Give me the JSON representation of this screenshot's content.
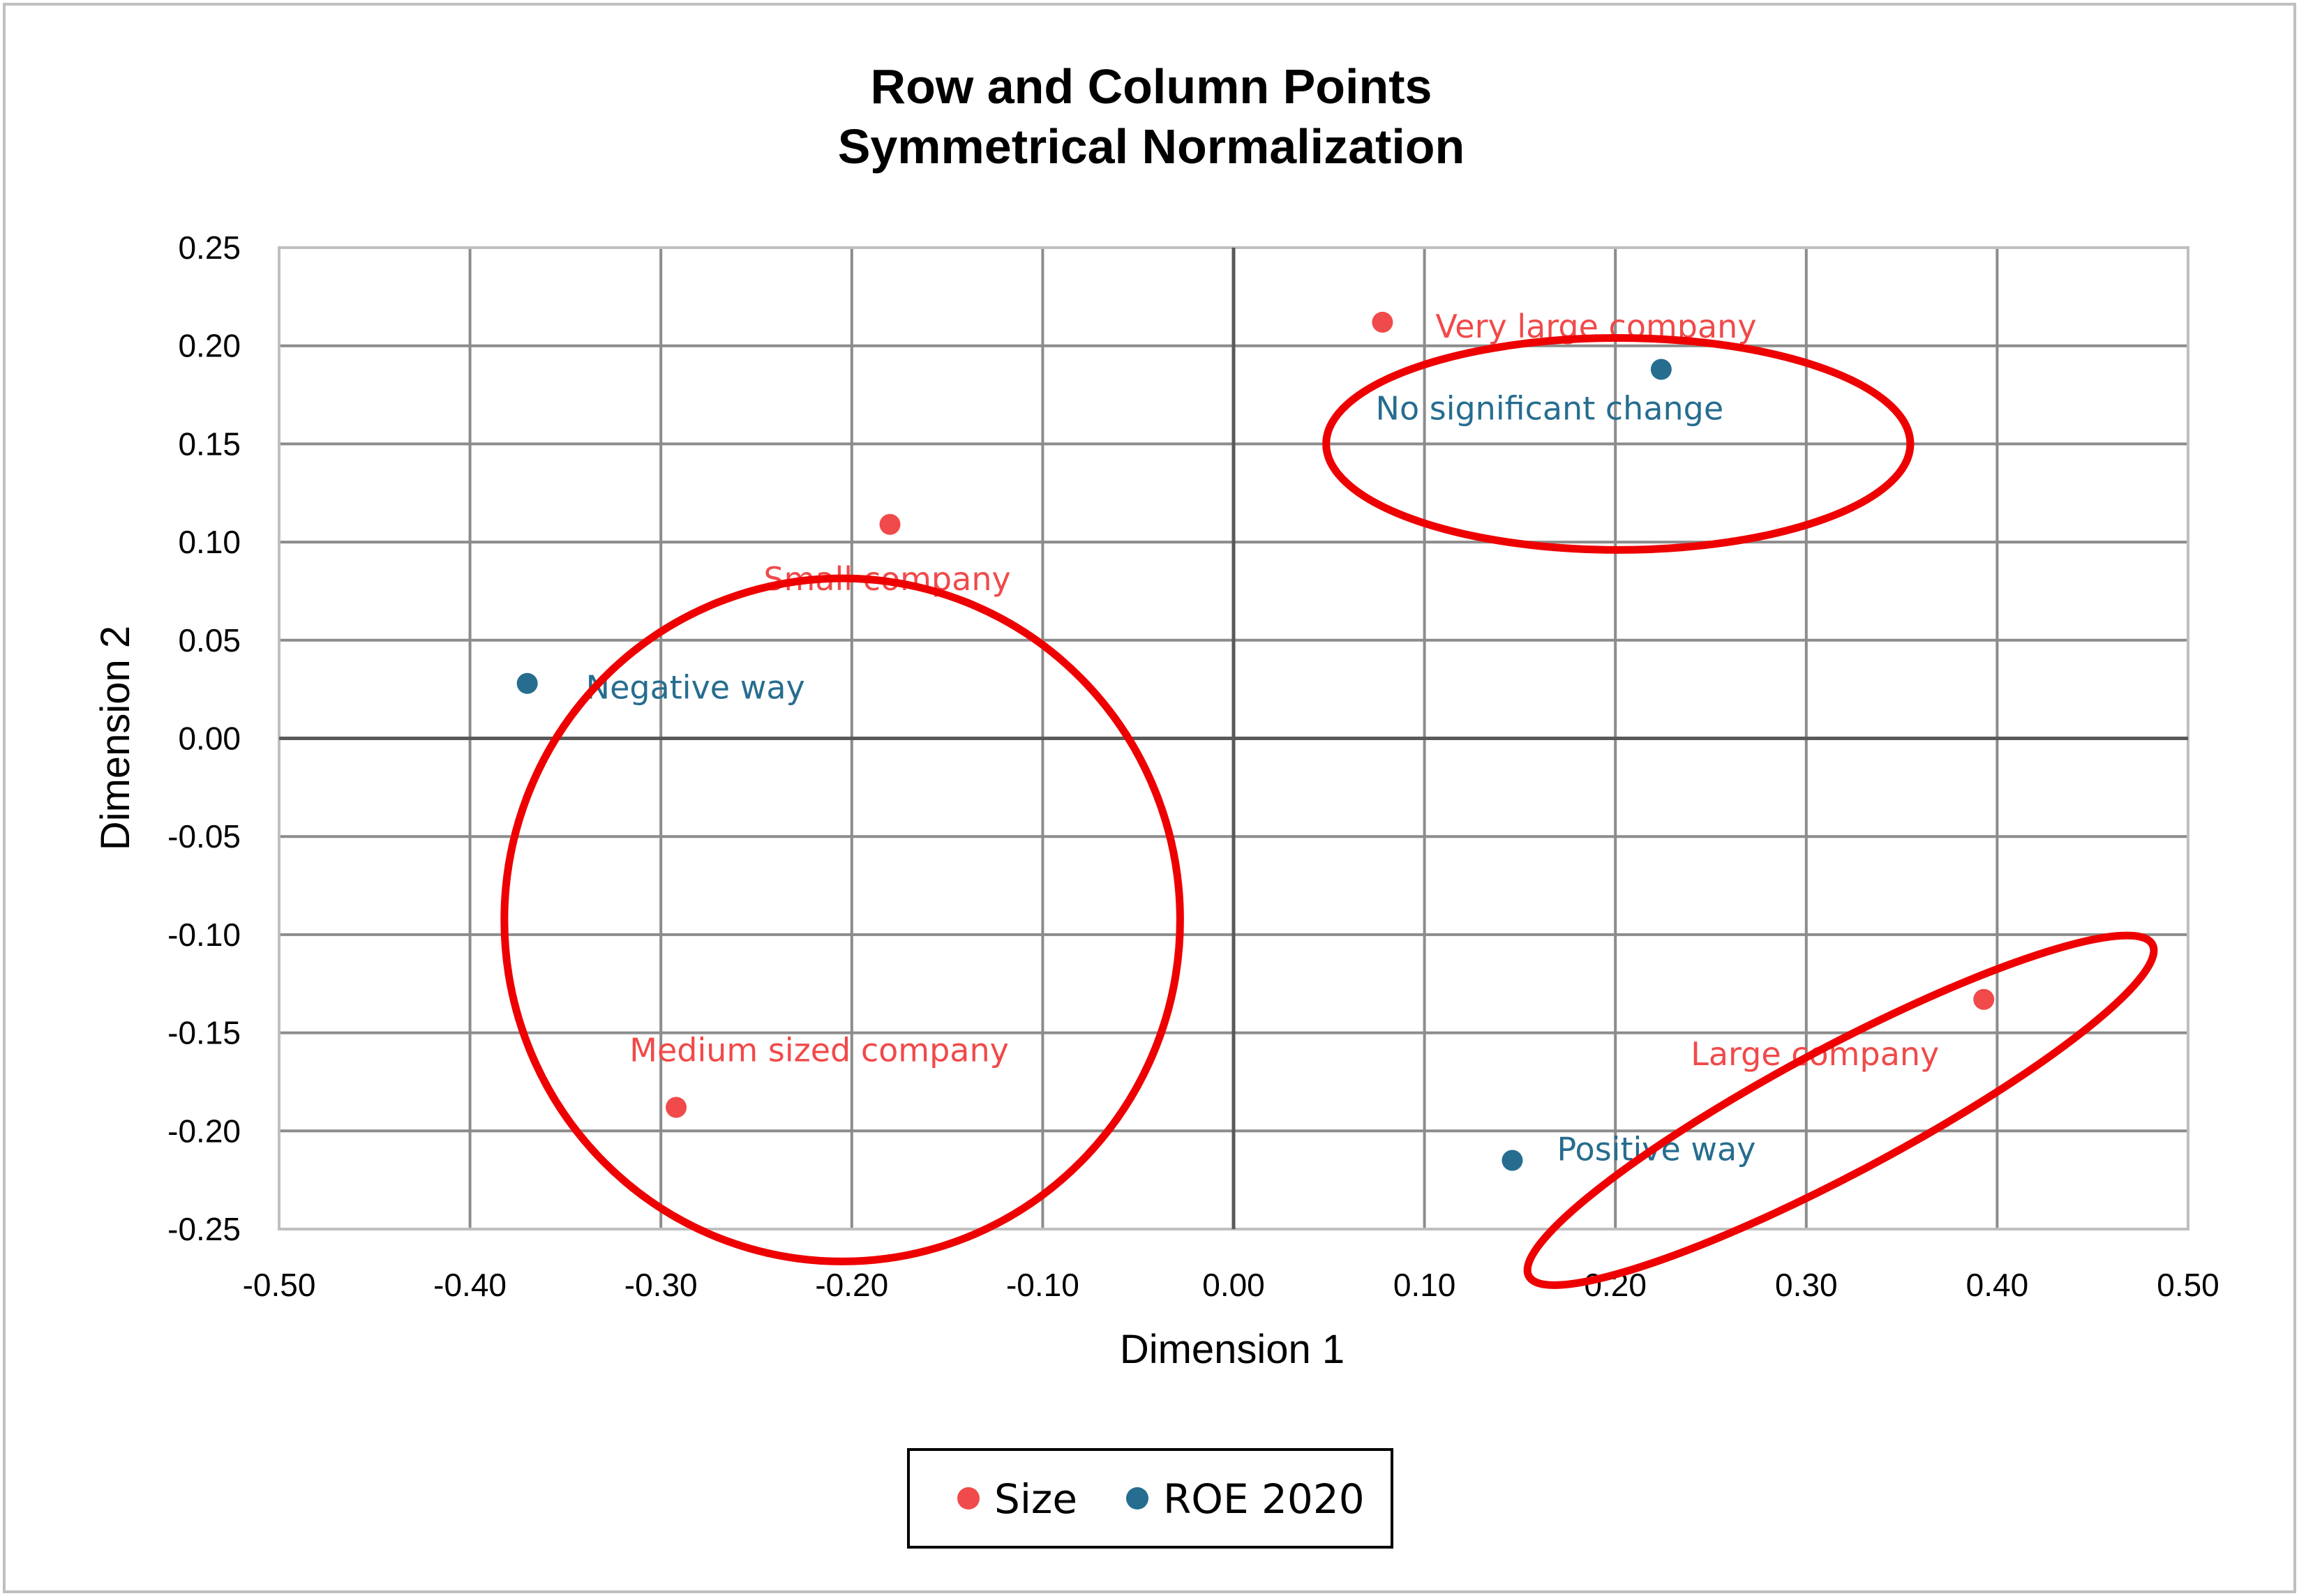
{
  "chart_data": {
    "type": "scatter",
    "title": [
      "Row and Column Points",
      "Symmetrical Normalization"
    ],
    "xlabel": "Dimension 1",
    "ylabel": "Dimension 2",
    "xlim": [
      -0.5,
      0.5
    ],
    "ylim": [
      -0.25,
      0.25
    ],
    "xticks": [
      -0.5,
      -0.4,
      -0.3,
      -0.2,
      -0.1,
      0.0,
      0.1,
      0.2,
      0.3,
      0.4,
      0.5
    ],
    "yticks": [
      0.25,
      0.2,
      0.15,
      0.1,
      0.05,
      0.0,
      -0.05,
      -0.1,
      -0.15,
      -0.2,
      -0.25
    ],
    "xtick_labels": [
      "-0.50",
      "-0.40",
      "-0.30",
      "-0.20",
      "-0.10",
      "0.00",
      "0.10",
      "0.20",
      "0.30",
      "0.40",
      "0.50"
    ],
    "ytick_labels": [
      "0.25",
      "0.20",
      "0.15",
      "0.10",
      "0.05",
      "0.00",
      "-0.05",
      "-0.10",
      "-0.15",
      "-0.20",
      "-0.25"
    ],
    "grid": true,
    "legend_position": "bottom",
    "series": [
      {
        "name": "Size",
        "color": "#f04a4a",
        "points": [
          {
            "label": "Very large company",
            "x": 0.078,
            "y": 0.212
          },
          {
            "label": "Small company",
            "x": -0.18,
            "y": 0.109
          },
          {
            "label": "Medium sized company",
            "x": -0.292,
            "y": -0.188
          },
          {
            "label": "Large company",
            "x": 0.393,
            "y": -0.133
          }
        ]
      },
      {
        "name": "ROE 2020",
        "color": "#266d8f",
        "points": [
          {
            "label": "No significant change",
            "x": 0.224,
            "y": 0.188
          },
          {
            "label": "Negative way",
            "x": -0.37,
            "y": 0.028
          },
          {
            "label": "Positive way",
            "x": 0.146,
            "y": -0.215
          }
        ]
      }
    ],
    "annotations": [
      {
        "type": "ellipse",
        "color": "#ee0000",
        "cx": -0.205,
        "cy": -0.0925,
        "rx": 0.177,
        "ry": 0.174,
        "rotation_deg": 0
      },
      {
        "type": "ellipse",
        "color": "#ee0000",
        "cx": 0.2015,
        "cy": 0.15,
        "rx": 0.153,
        "ry": 0.054,
        "rotation_deg": 0
      },
      {
        "type": "ellipse",
        "color": "#ee0000",
        "cx": 0.318,
        "cy": -0.1895,
        "rx": 0.185,
        "ry": 0.032,
        "rotation_deg": -28
      }
    ]
  }
}
